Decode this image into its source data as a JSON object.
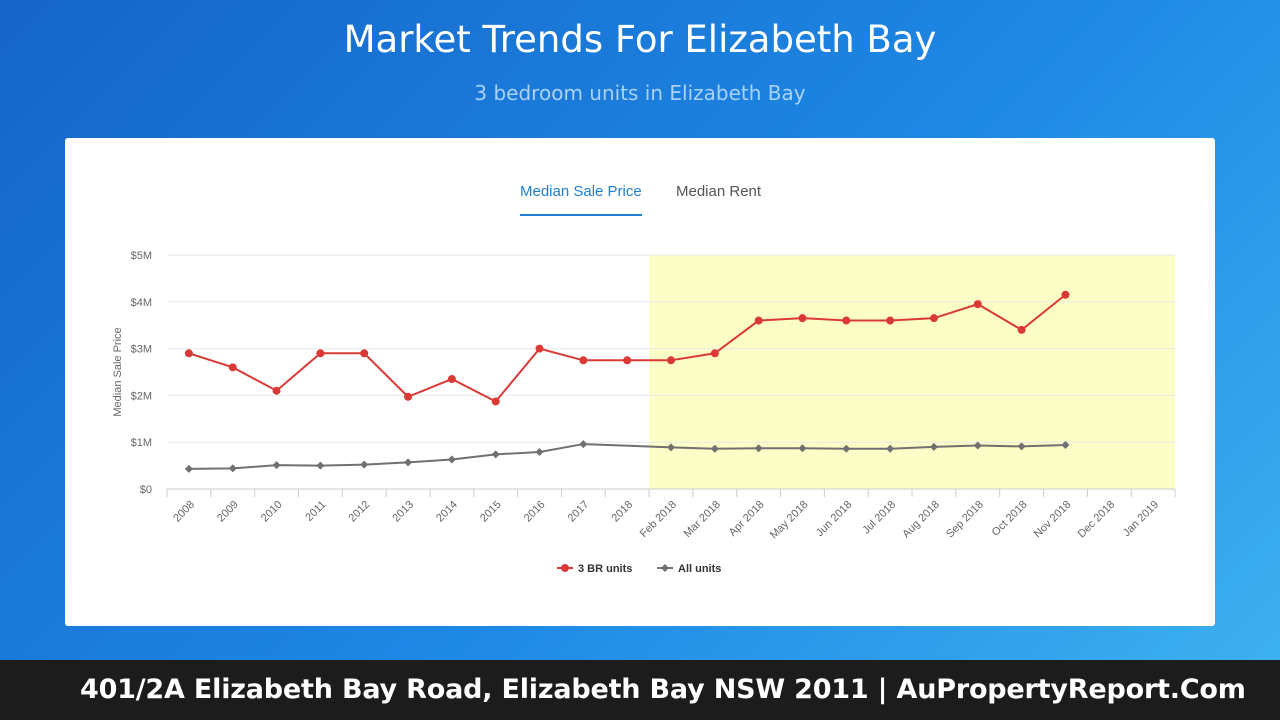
{
  "header": {
    "title": "Market Trends For Elizabeth Bay",
    "subtitle": "3 bedroom units in Elizabeth Bay"
  },
  "tabs": [
    {
      "label": "Median Sale Price",
      "active": true
    },
    {
      "label": "Median Rent",
      "active": false
    }
  ],
  "footer": {
    "text": "401/2A Elizabeth Bay Road, Elizabeth Bay NSW 2011 | AuPropertyReport.Com"
  },
  "colors": {
    "series_3br": "#d93a36",
    "series_all": "#707070",
    "highlight": "#fdfdc7",
    "tab_active": "#1e7fd0"
  },
  "chart_data": {
    "type": "line",
    "title": "",
    "xlabel": "",
    "ylabel": "Median Sale Price",
    "ylim": [
      0,
      5000000
    ],
    "yticks": [
      {
        "value": 0,
        "label": "$0"
      },
      {
        "value": 1000000,
        "label": "$1M"
      },
      {
        "value": 2000000,
        "label": "$2M"
      },
      {
        "value": 3000000,
        "label": "$3M"
      },
      {
        "value": 4000000,
        "label": "$4M"
      },
      {
        "value": 5000000,
        "label": "$5M"
      }
    ],
    "categories": [
      "2008",
      "2009",
      "2010",
      "2011",
      "2012",
      "2013",
      "2014",
      "2015",
      "2016",
      "2017",
      "2018",
      "Feb 2018",
      "Mar 2018",
      "Apr 2018",
      "May 2018",
      "Jun 2018",
      "Jul 2018",
      "Aug 2018",
      "Sep 2018",
      "Oct 2018",
      "Nov 2018",
      "Dec 2018",
      "Jan 2019"
    ],
    "highlight_range": [
      "Feb 2018",
      "Jan 2019"
    ],
    "grid": true,
    "legend_position": "bottom",
    "series": [
      {
        "name": "3 BR units",
        "color": "#d93a36",
        "marker": "circle",
        "values": [
          2900000,
          2600000,
          2100000,
          2900000,
          2900000,
          1970000,
          2350000,
          1870000,
          3000000,
          2750000,
          2750000,
          2750000,
          2900000,
          3600000,
          3650000,
          3600000,
          3600000,
          3650000,
          3950000,
          3400000,
          4150000,
          null,
          null
        ]
      },
      {
        "name": "All units",
        "color": "#707070",
        "marker": "diamond",
        "values": [
          430000,
          440000,
          510000,
          500000,
          520000,
          570000,
          630000,
          740000,
          790000,
          960000,
          null,
          890000,
          860000,
          870000,
          870000,
          860000,
          860000,
          900000,
          930000,
          910000,
          940000,
          null,
          null
        ]
      }
    ]
  }
}
